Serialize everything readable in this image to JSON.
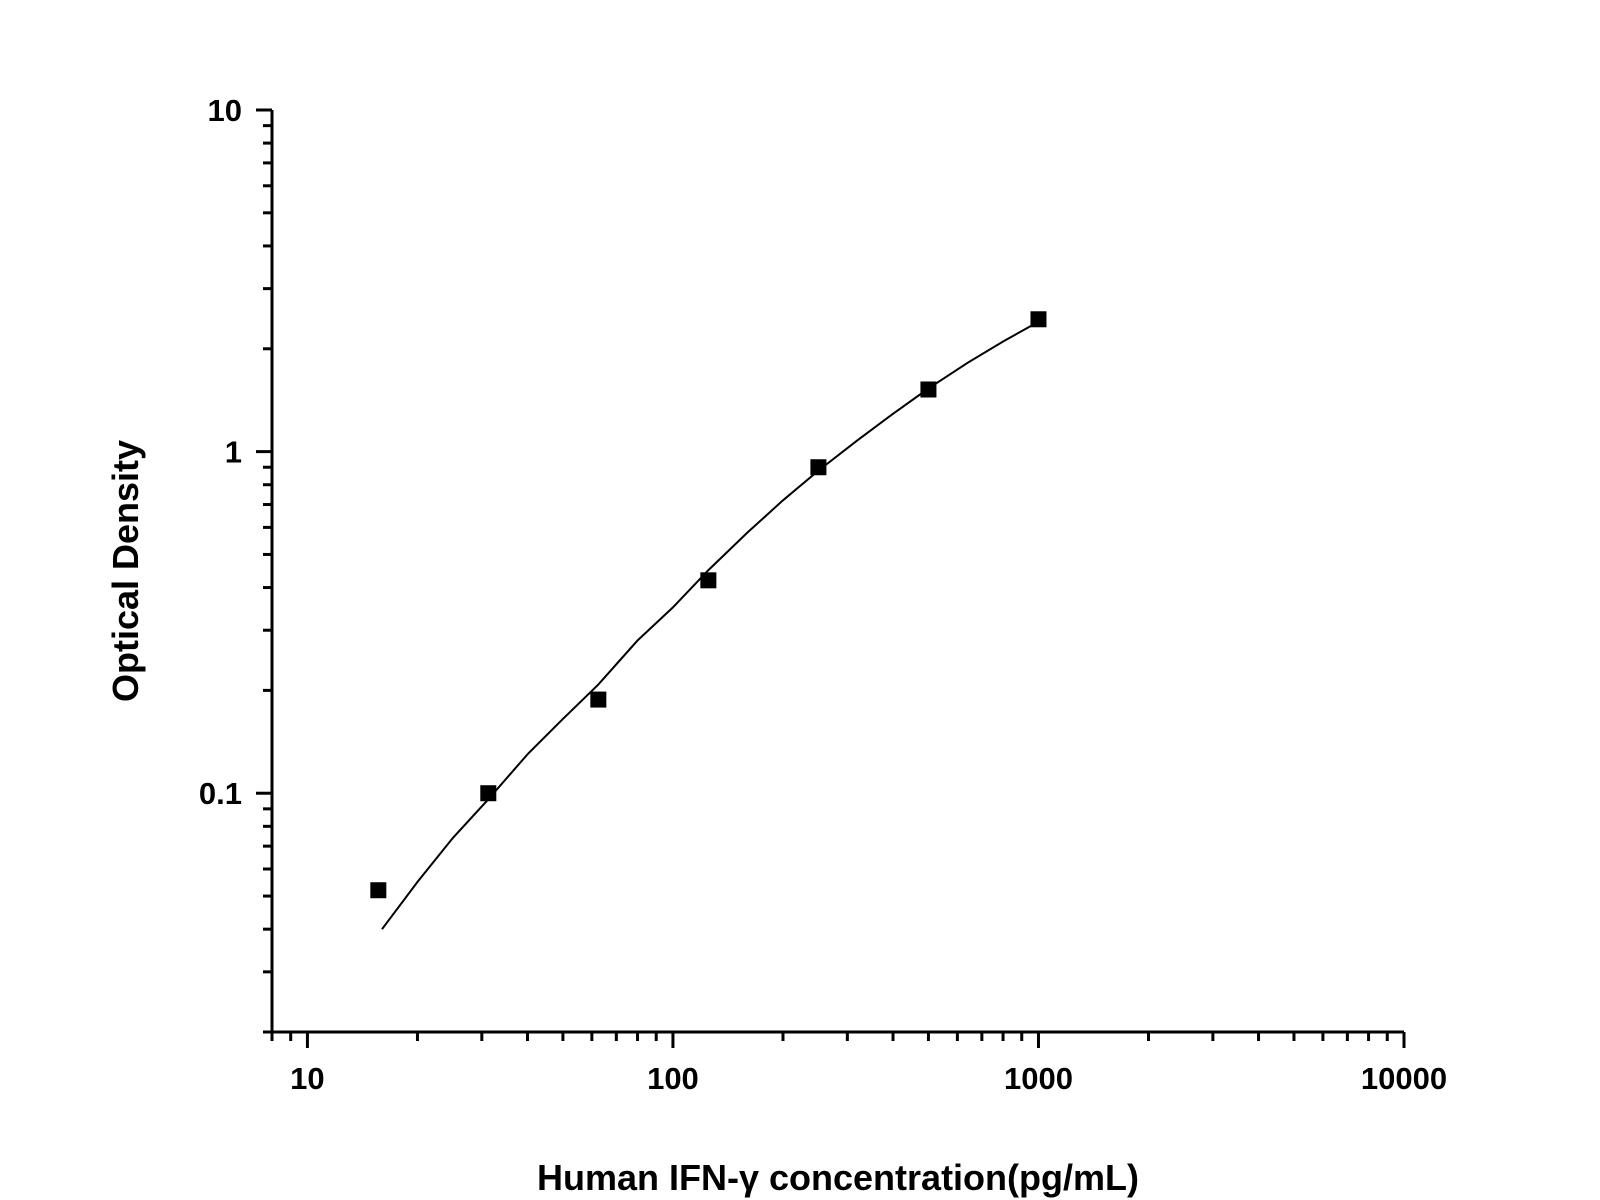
{
  "chart_data": {
    "type": "scatter",
    "title": "",
    "xlabel": "Human IFN-γ concentration(pg/mL)",
    "ylabel": "Optical Density",
    "x_scale": "log",
    "y_scale": "log",
    "xlim": [
      8,
      10000
    ],
    "ylim": [
      0.02,
      10
    ],
    "x_ticks": [
      {
        "value": 10,
        "label": "10"
      },
      {
        "value": 100,
        "label": "100"
      },
      {
        "value": 1000,
        "label": "1000"
      },
      {
        "value": 10000,
        "label": "10000"
      }
    ],
    "y_ticks": [
      {
        "value": 0.1,
        "label": "0.1"
      },
      {
        "value": 1,
        "label": "1"
      },
      {
        "value": 10,
        "label": "10"
      }
    ],
    "grid": false,
    "legend": "none",
    "series": [
      {
        "marker": "square",
        "color": "#000000",
        "points": [
          {
            "x": 15.63,
            "y": 0.052
          },
          {
            "x": 31.25,
            "y": 0.1
          },
          {
            "x": 62.5,
            "y": 0.188
          },
          {
            "x": 125,
            "y": 0.42
          },
          {
            "x": 250,
            "y": 0.9
          },
          {
            "x": 500,
            "y": 1.52
          },
          {
            "x": 1000,
            "y": 2.44
          }
        ]
      }
    ],
    "fit_curve": {
      "color": "#000000",
      "points": [
        {
          "x": 16,
          "y": 0.04
        },
        {
          "x": 20,
          "y": 0.055
        },
        {
          "x": 25,
          "y": 0.074
        },
        {
          "x": 31.25,
          "y": 0.096
        },
        {
          "x": 40,
          "y": 0.13
        },
        {
          "x": 50,
          "y": 0.165
        },
        {
          "x": 62.5,
          "y": 0.208
        },
        {
          "x": 80,
          "y": 0.28
        },
        {
          "x": 100,
          "y": 0.35
        },
        {
          "x": 125,
          "y": 0.45
        },
        {
          "x": 160,
          "y": 0.58
        },
        {
          "x": 200,
          "y": 0.72
        },
        {
          "x": 250,
          "y": 0.88
        },
        {
          "x": 320,
          "y": 1.08
        },
        {
          "x": 400,
          "y": 1.29
        },
        {
          "x": 500,
          "y": 1.53
        },
        {
          "x": 640,
          "y": 1.82
        },
        {
          "x": 800,
          "y": 2.1
        },
        {
          "x": 1000,
          "y": 2.4
        }
      ]
    }
  }
}
